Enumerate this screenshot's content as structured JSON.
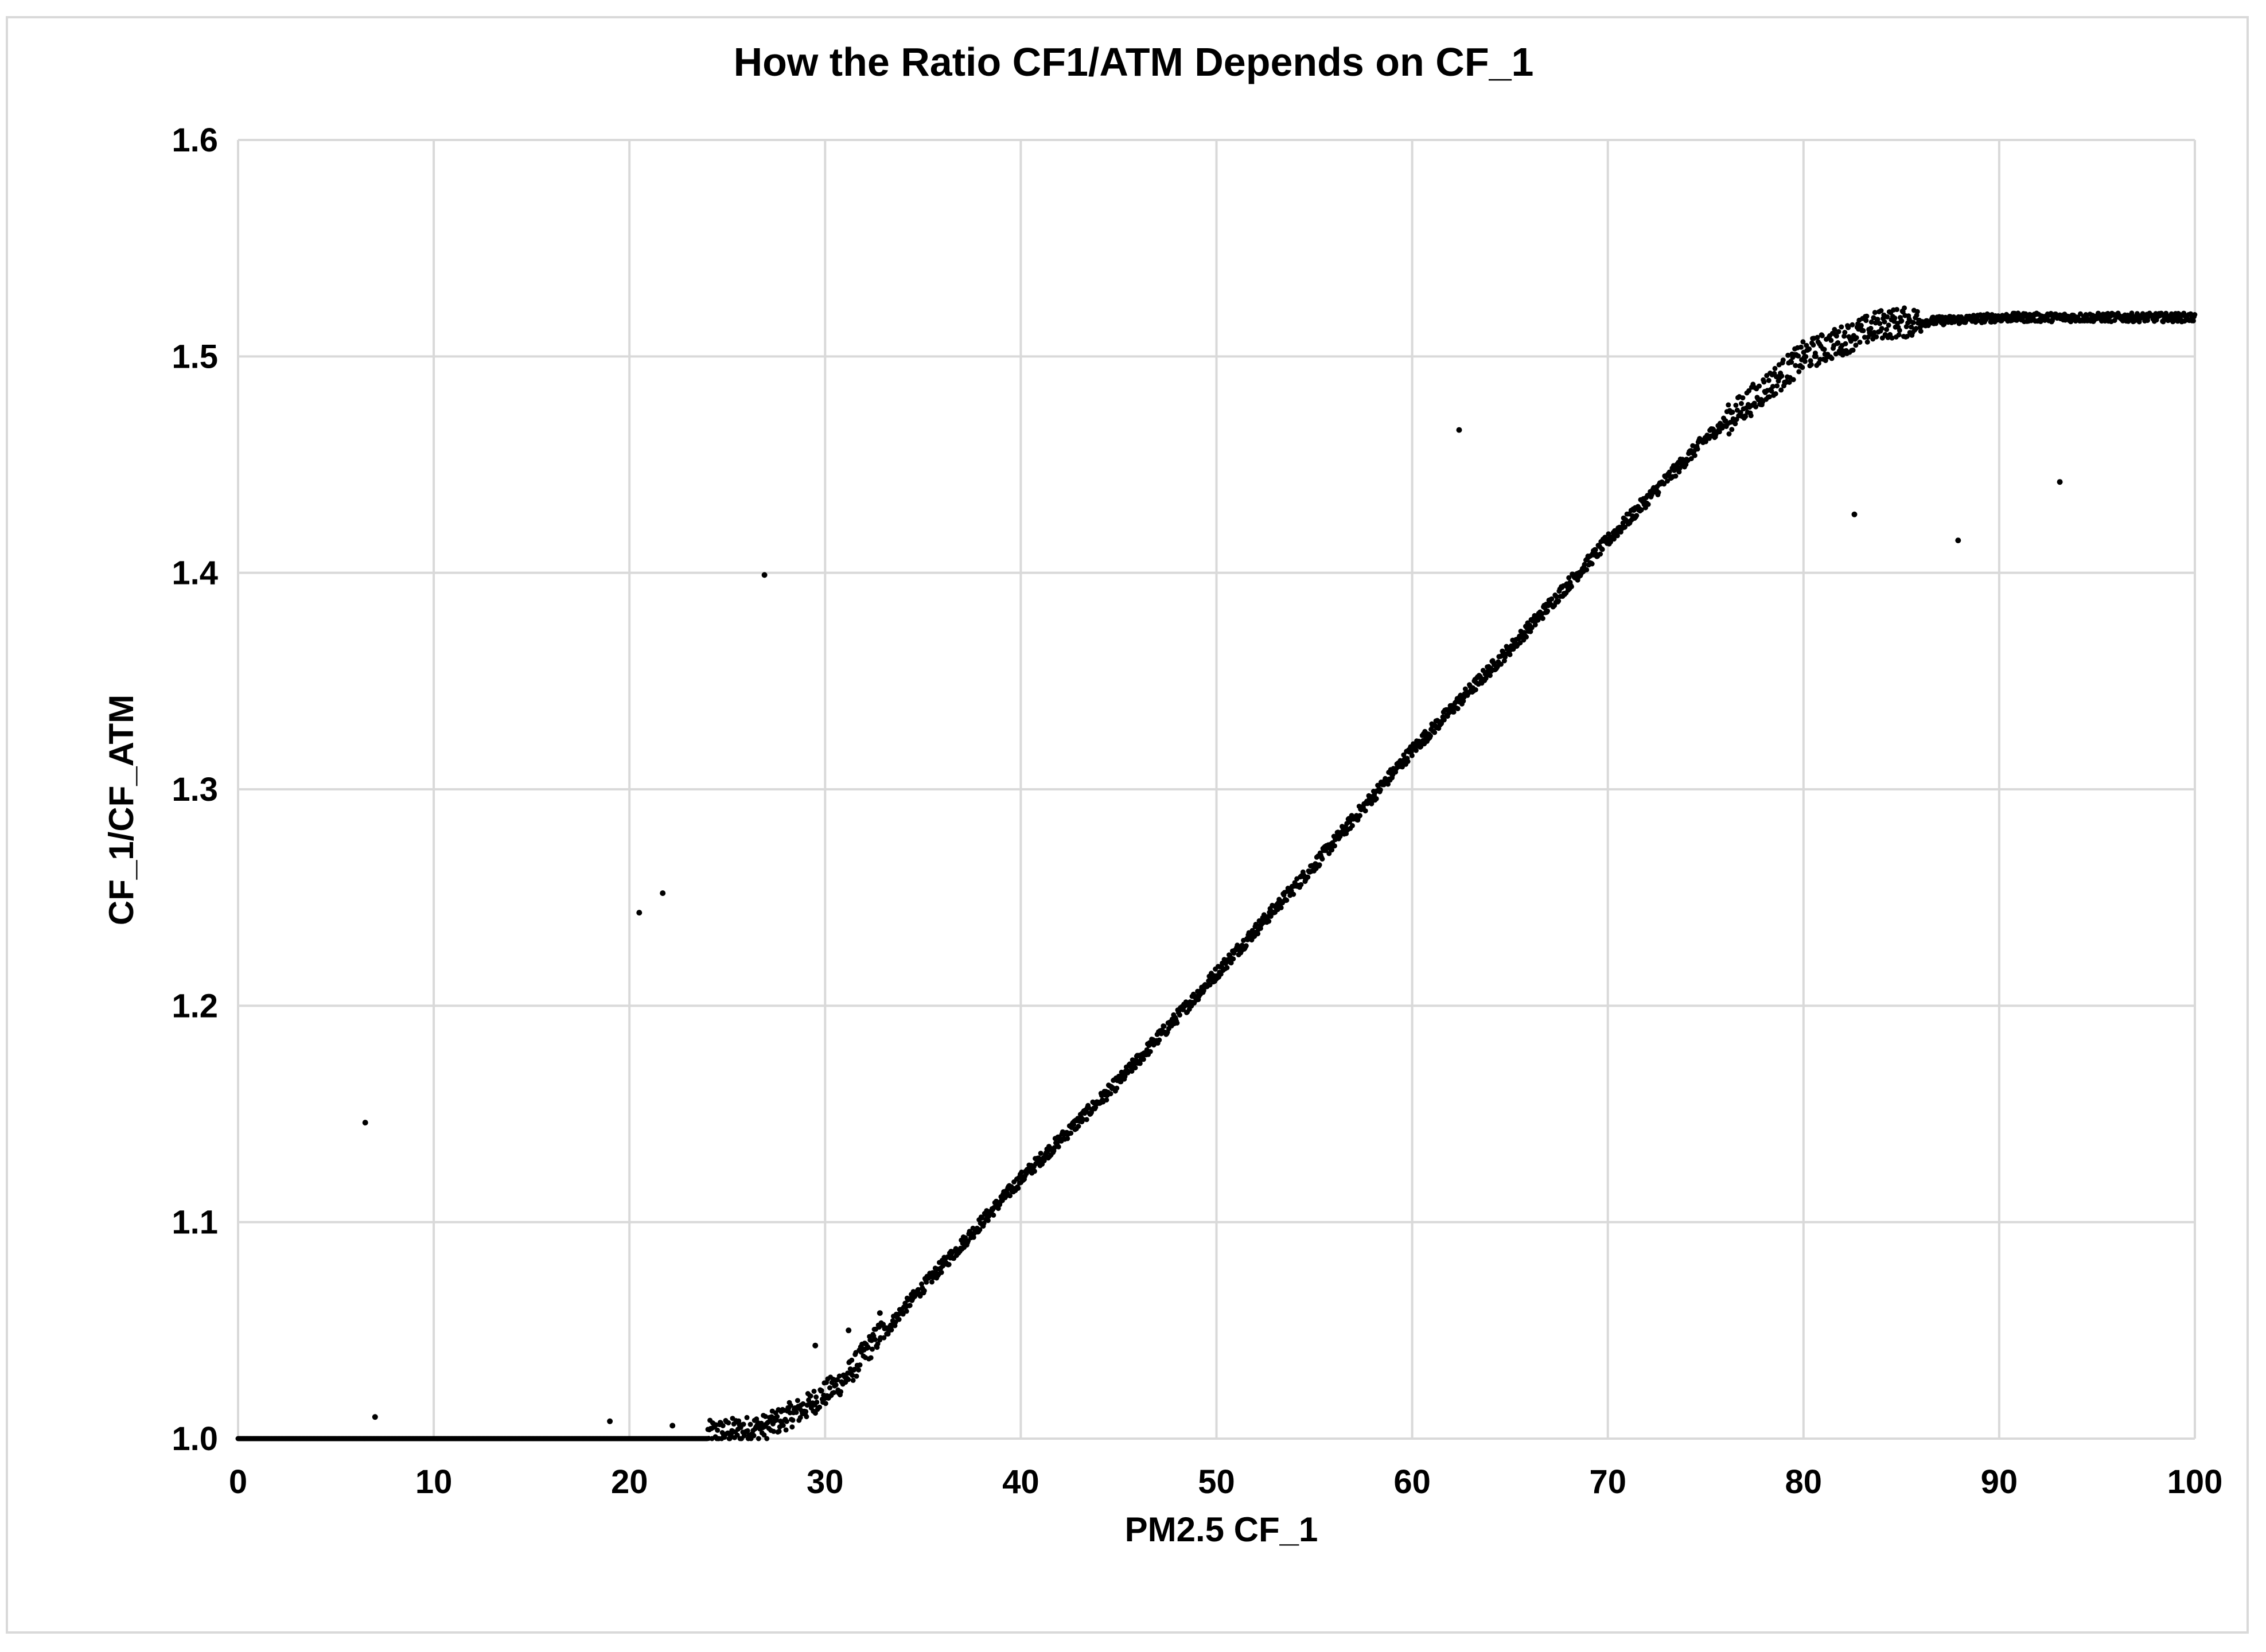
{
  "chart_data": {
    "type": "scatter",
    "title": "How the Ratio CF1/ATM Depends on CF_1",
    "xlabel": "PM2.5 CF_1",
    "ylabel": "CF_1/CF_ATM",
    "xlim": [
      0,
      100
    ],
    "ylim": [
      1.0,
      1.6
    ],
    "x_ticks": [
      0,
      10,
      20,
      30,
      40,
      50,
      60,
      70,
      80,
      90,
      100
    ],
    "y_ticks": [
      1.0,
      1.1,
      1.2,
      1.3,
      1.4,
      1.5,
      1.6
    ],
    "x_tick_labels": [
      "0",
      "10",
      "20",
      "30",
      "40",
      "50",
      "60",
      "70",
      "80",
      "90",
      "100"
    ],
    "y_tick_labels": [
      "1.0",
      "1.1",
      "1.2",
      "1.3",
      "1.4",
      "1.5",
      "1.6"
    ],
    "grid": true,
    "marker_color": "#000000",
    "series": [
      {
        "name": "ratio",
        "trend": {
          "description": "ratio = 1.0 below about 25, rises roughly linearly from ~27 to ~80, plateaus at ~1.518 above ~84",
          "knots": [
            [
              0,
              1.0
            ],
            [
              24,
              1.0
            ],
            [
              27,
              1.003
            ],
            [
              29,
              1.012
            ],
            [
              31,
              1.025
            ],
            [
              34,
              1.06
            ],
            [
              40,
              1.12
            ],
            [
              45,
              1.165
            ],
            [
              50,
              1.215
            ],
            [
              55,
              1.265
            ],
            [
              60,
              1.318
            ],
            [
              65,
              1.365
            ],
            [
              70,
              1.415
            ],
            [
              75,
              1.462
            ],
            [
              80,
              1.5
            ],
            [
              84,
              1.515
            ],
            [
              90,
              1.518
            ],
            [
              100,
              1.518
            ]
          ]
        },
        "outliers": [
          [
            6.5,
            1.146
          ],
          [
            7.0,
            1.01
          ],
          [
            19.0,
            1.008
          ],
          [
            20.5,
            1.243
          ],
          [
            21.7,
            1.252
          ],
          [
            22.2,
            1.006
          ],
          [
            26.9,
            1.399
          ],
          [
            29.5,
            1.043
          ],
          [
            31.2,
            1.05
          ],
          [
            32.8,
            1.058
          ],
          [
            62.4,
            1.466
          ],
          [
            82.6,
            1.427
          ],
          [
            87.9,
            1.415
          ],
          [
            93.1,
            1.442
          ]
        ]
      }
    ]
  }
}
